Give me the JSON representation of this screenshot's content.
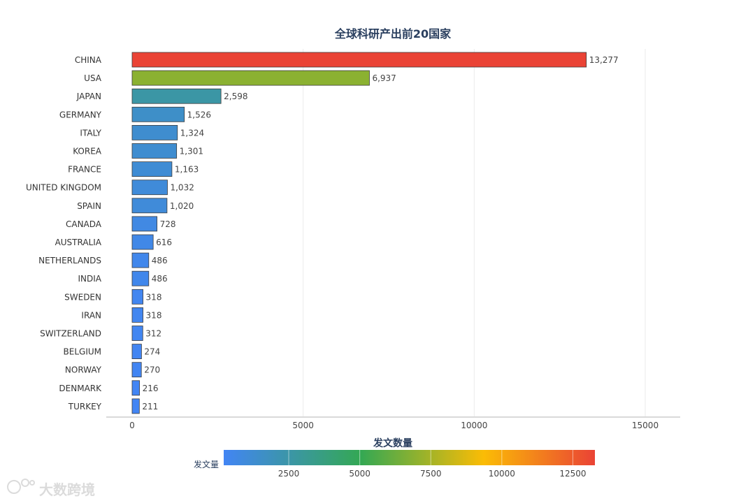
{
  "chart_data": {
    "type": "bar",
    "orientation": "horizontal",
    "title": "全球科研产出前20国家",
    "categories": [
      "CHINA",
      "USA",
      "JAPAN",
      "GERMANY",
      "ITALY",
      "KOREA",
      "FRANCE",
      "UNITED KINGDOM",
      "SPAIN",
      "CANADA",
      "AUSTRALIA",
      "NETHERLANDS",
      "INDIA",
      "SWEDEN",
      "IRAN",
      "SWITZERLAND",
      "BELGIUM",
      "NORWAY",
      "DENMARK",
      "TURKEY"
    ],
    "values": [
      13277,
      6937,
      2598,
      1526,
      1324,
      1301,
      1163,
      1032,
      1020,
      728,
      616,
      486,
      486,
      318,
      318,
      312,
      274,
      270,
      216,
      211
    ],
    "value_labels": [
      "13,277",
      "6,937",
      "2,598",
      "1,526",
      "1,324",
      "1,301",
      "1,163",
      "1,032",
      "1,020",
      "728",
      "616",
      "486",
      "486",
      "318",
      "318",
      "312",
      "274",
      "270",
      "216",
      "211"
    ],
    "xlim": [
      0,
      15000
    ],
    "x_ticks": [
      "0",
      "5000",
      "10000",
      "15000"
    ],
    "x_tick_values": [
      0,
      5000,
      10000,
      15000
    ],
    "grid": true,
    "colorbar": {
      "title": "发文数量",
      "label": "发文量",
      "range": [
        211,
        13277
      ],
      "ticks": [
        "2500",
        "5000",
        "7500",
        "10000",
        "12500"
      ],
      "tick_values": [
        2500,
        5000,
        7500,
        10000,
        12500
      ],
      "colors": [
        "#4285f4",
        "#34a853",
        "#fbbc05",
        "#ea4335"
      ]
    }
  },
  "watermark": "大数跨境"
}
